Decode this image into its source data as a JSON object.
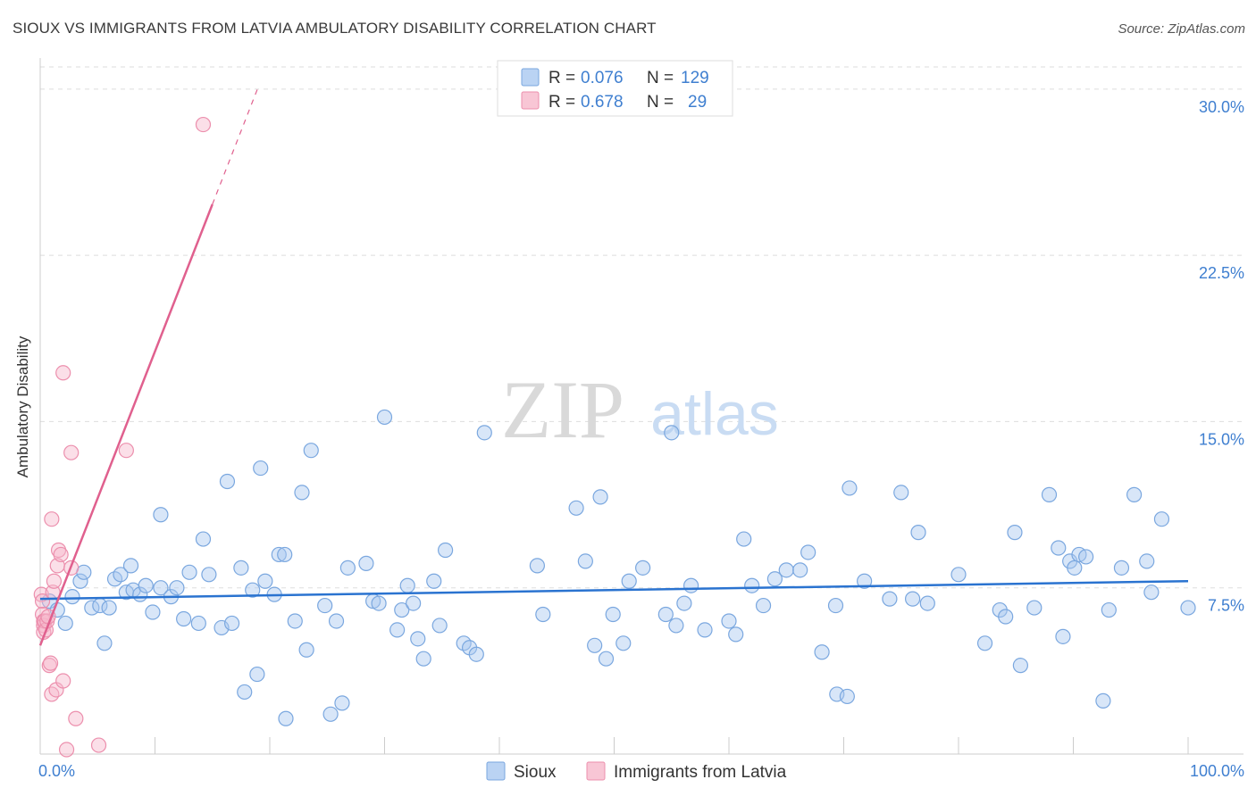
{
  "header": {
    "title": "SIOUX VS IMMIGRANTS FROM LATVIA AMBULATORY DISABILITY CORRELATION CHART",
    "source": "Source: ZipAtlas.com"
  },
  "watermark": {
    "zip": "ZIP",
    "atlas": "atlas"
  },
  "colors": {
    "sioux_fill": "#a9c8f0",
    "sioux_stroke": "#7aa7df",
    "sioux_line": "#2a73d0",
    "latvia_fill": "#f6b8cb",
    "latvia_stroke": "#ec8fad",
    "latvia_line": "#e0608e",
    "tick_label": "#3f7fd0",
    "grid": "#dddddd"
  },
  "stats": {
    "rows": [
      {
        "series": "Sioux",
        "r_label": "R =",
        "r_value": "0.076",
        "n_label": "N =",
        "n_value": "129"
      },
      {
        "series": "Immigrants from Latvia",
        "r_label": "R =",
        "r_value": "0.678",
        "n_label": "N =",
        "n_value": "29"
      }
    ]
  },
  "chart_data": {
    "type": "scatter",
    "title": "SIOUX VS IMMIGRANTS FROM LATVIA AMBULATORY DISABILITY CORRELATION CHART",
    "xlabel": "",
    "ylabel": "Ambulatory Disability",
    "xlim": [
      0,
      100
    ],
    "ylim": [
      0,
      31
    ],
    "x_tick_labels": [
      {
        "value": 0,
        "label": "0.0%"
      },
      {
        "value": 100,
        "label": "100.0%"
      }
    ],
    "y_ticks": [
      {
        "value": 7.5,
        "label": "7.5%"
      },
      {
        "value": 15.0,
        "label": "15.0%"
      },
      {
        "value": 22.5,
        "label": "22.5%"
      },
      {
        "value": 30.0,
        "label": "30.0%"
      }
    ],
    "grid": "horizontal dashed",
    "legend": "bottom-center",
    "series": [
      {
        "name": "Sioux",
        "trend": {
          "x": [
            0,
            100
          ],
          "y": [
            7.0,
            7.8
          ],
          "style": "solid"
        },
        "points": [
          [
            0.8,
            6.9
          ],
          [
            1.5,
            6.5
          ],
          [
            2.2,
            5.9
          ],
          [
            2.8,
            7.1
          ],
          [
            3.5,
            7.8
          ],
          [
            3.8,
            8.2
          ],
          [
            4.5,
            6.6
          ],
          [
            5.2,
            6.7
          ],
          [
            5.6,
            5.0
          ],
          [
            6.0,
            6.6
          ],
          [
            6.5,
            7.9
          ],
          [
            7.0,
            8.1
          ],
          [
            7.5,
            7.3
          ],
          [
            7.9,
            8.5
          ],
          [
            8.1,
            7.4
          ],
          [
            8.7,
            7.2
          ],
          [
            9.2,
            7.6
          ],
          [
            9.8,
            6.4
          ],
          [
            10.5,
            7.5
          ],
          [
            10.5,
            10.8
          ],
          [
            11.4,
            7.1
          ],
          [
            11.9,
            7.5
          ],
          [
            12.5,
            6.1
          ],
          [
            13.0,
            8.2
          ],
          [
            13.8,
            5.9
          ],
          [
            14.2,
            9.7
          ],
          [
            14.7,
            8.1
          ],
          [
            15.8,
            5.7
          ],
          [
            16.3,
            12.3
          ],
          [
            16.7,
            5.9
          ],
          [
            17.5,
            8.4
          ],
          [
            17.8,
            2.8
          ],
          [
            18.5,
            7.4
          ],
          [
            18.9,
            3.6
          ],
          [
            19.2,
            12.9
          ],
          [
            19.6,
            7.8
          ],
          [
            20.4,
            7.2
          ],
          [
            20.8,
            9.0
          ],
          [
            21.3,
            9.0
          ],
          [
            21.4,
            1.6
          ],
          [
            22.2,
            6.0
          ],
          [
            22.8,
            11.8
          ],
          [
            23.2,
            4.7
          ],
          [
            23.6,
            13.7
          ],
          [
            24.8,
            6.7
          ],
          [
            25.3,
            1.8
          ],
          [
            25.8,
            6.0
          ],
          [
            26.3,
            2.3
          ],
          [
            26.8,
            8.4
          ],
          [
            28.4,
            8.6
          ],
          [
            29.0,
            6.9
          ],
          [
            29.5,
            6.8
          ],
          [
            30.0,
            15.2
          ],
          [
            31.1,
            5.6
          ],
          [
            31.5,
            6.5
          ],
          [
            32.0,
            7.6
          ],
          [
            32.5,
            6.8
          ],
          [
            32.9,
            5.2
          ],
          [
            33.4,
            4.3
          ],
          [
            34.3,
            7.8
          ],
          [
            34.8,
            5.8
          ],
          [
            35.3,
            9.2
          ],
          [
            36.9,
            5.0
          ],
          [
            37.4,
            4.8
          ],
          [
            38.0,
            4.5
          ],
          [
            38.7,
            14.5
          ],
          [
            43.3,
            8.5
          ],
          [
            43.8,
            6.3
          ],
          [
            46.7,
            11.1
          ],
          [
            47.5,
            8.7
          ],
          [
            48.3,
            4.9
          ],
          [
            48.8,
            11.6
          ],
          [
            49.3,
            4.3
          ],
          [
            49.9,
            6.3
          ],
          [
            50.8,
            5.0
          ],
          [
            51.3,
            7.8
          ],
          [
            52.5,
            8.4
          ],
          [
            54.5,
            6.3
          ],
          [
            55.0,
            14.5
          ],
          [
            55.4,
            5.8
          ],
          [
            56.1,
            6.8
          ],
          [
            56.7,
            7.6
          ],
          [
            57.9,
            5.6
          ],
          [
            60.0,
            6.0
          ],
          [
            60.6,
            5.4
          ],
          [
            61.3,
            9.7
          ],
          [
            62.0,
            7.6
          ],
          [
            63.0,
            6.7
          ],
          [
            64.0,
            7.9
          ],
          [
            65.0,
            8.3
          ],
          [
            66.2,
            8.3
          ],
          [
            66.9,
            9.1
          ],
          [
            68.1,
            4.6
          ],
          [
            69.3,
            6.7
          ],
          [
            69.4,
            2.7
          ],
          [
            70.3,
            2.6
          ],
          [
            70.5,
            12.0
          ],
          [
            71.8,
            7.8
          ],
          [
            74.0,
            7.0
          ],
          [
            75.0,
            11.8
          ],
          [
            76.0,
            7.0
          ],
          [
            76.5,
            10.0
          ],
          [
            77.3,
            6.8
          ],
          [
            80.0,
            8.1
          ],
          [
            82.3,
            5.0
          ],
          [
            83.6,
            6.5
          ],
          [
            84.1,
            6.2
          ],
          [
            84.9,
            10.0
          ],
          [
            85.4,
            4.0
          ],
          [
            86.6,
            6.6
          ],
          [
            87.9,
            11.7
          ],
          [
            88.7,
            9.3
          ],
          [
            89.1,
            5.3
          ],
          [
            89.7,
            8.7
          ],
          [
            90.1,
            8.4
          ],
          [
            90.5,
            9.0
          ],
          [
            91.1,
            8.9
          ],
          [
            92.6,
            2.4
          ],
          [
            93.1,
            6.5
          ],
          [
            94.2,
            8.4
          ],
          [
            95.3,
            11.7
          ],
          [
            96.4,
            8.7
          ],
          [
            96.8,
            7.3
          ],
          [
            97.7,
            10.6
          ],
          [
            100.0,
            6.6
          ]
        ]
      },
      {
        "name": "Immigrants from Latvia",
        "trend": {
          "x": [
            0,
            15
          ],
          "y": [
            4.9,
            24.8
          ],
          "extended_to": {
            "x": 19,
            "y": 30.1
          },
          "style": "solid then dashed"
        },
        "points": [
          [
            0.1,
            7.2
          ],
          [
            0.2,
            6.9
          ],
          [
            0.2,
            6.3
          ],
          [
            0.3,
            6.0
          ],
          [
            0.3,
            5.8
          ],
          [
            0.3,
            5.5
          ],
          [
            0.4,
            6.0
          ],
          [
            0.5,
            5.6
          ],
          [
            0.6,
            6.0
          ],
          [
            0.7,
            6.2
          ],
          [
            0.8,
            4.0
          ],
          [
            0.9,
            4.1
          ],
          [
            1.0,
            2.7
          ],
          [
            1.0,
            10.6
          ],
          [
            1.1,
            7.3
          ],
          [
            1.2,
            7.8
          ],
          [
            1.4,
            2.9
          ],
          [
            1.5,
            8.5
          ],
          [
            1.6,
            9.2
          ],
          [
            1.8,
            9.0
          ],
          [
            2.0,
            3.3
          ],
          [
            2.0,
            17.2
          ],
          [
            2.3,
            0.2
          ],
          [
            2.7,
            8.4
          ],
          [
            2.7,
            13.6
          ],
          [
            3.1,
            1.6
          ],
          [
            5.1,
            0.4
          ],
          [
            7.5,
            13.7
          ],
          [
            14.2,
            28.4
          ]
        ]
      }
    ]
  }
}
